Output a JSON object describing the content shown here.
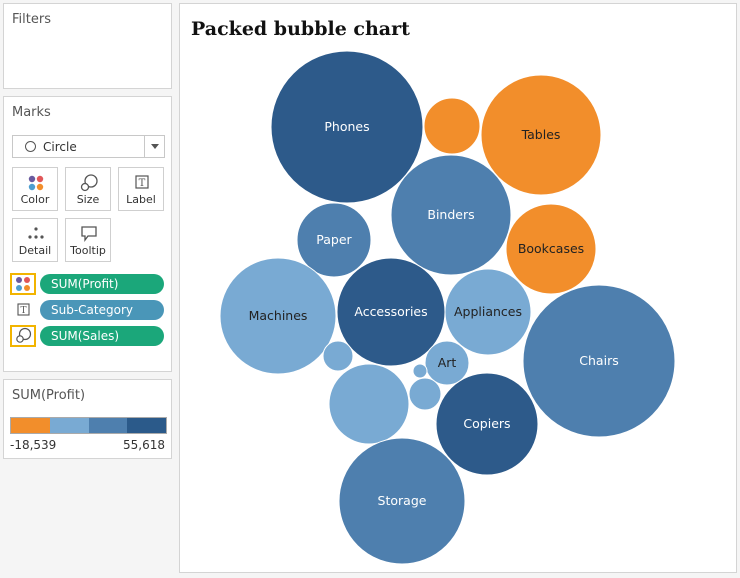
{
  "panels": {
    "filters_title": "Filters",
    "marks_title": "Marks",
    "mark_type": "Circle",
    "buttons": [
      {
        "label": "Color",
        "icon": "color-dots-icon"
      },
      {
        "label": "Size",
        "icon": "size-icon"
      },
      {
        "label": "Label",
        "icon": "label-icon"
      },
      {
        "label": "Detail",
        "icon": "detail-icon"
      },
      {
        "label": "Tooltip",
        "icon": "tooltip-icon"
      }
    ],
    "pills": [
      {
        "label": "SUM(Profit)",
        "icon": "color-dots-icon",
        "highlighted": true,
        "color": "#1ba77a"
      },
      {
        "label": "Sub-Category",
        "icon": "label-icon",
        "highlighted": false,
        "color": "#4a96b8"
      },
      {
        "label": "SUM(Sales)",
        "icon": "size-icon",
        "highlighted": true,
        "color": "#1ba77a"
      }
    ]
  },
  "legend": {
    "title": "SUM(Profit)",
    "min": "-18,539",
    "max": "55,618",
    "colors": [
      "#f28e2b",
      "#79aad3",
      "#4e7fae",
      "#2b5a8a"
    ]
  },
  "chart": {
    "title": "Packed bubble chart"
  },
  "chart_data": {
    "type": "bubble",
    "title": "Packed bubble chart",
    "size_measure": "SUM(Sales)",
    "color_measure": "SUM(Profit)",
    "label_field": "Sub-Category",
    "bubbles": [
      {
        "label": "Phones",
        "color": "#2d5a8a",
        "text_color": "#ffffff"
      },
      {
        "label": "",
        "color": "#f28e2b",
        "text_color": "#ffffff"
      },
      {
        "label": "Tables",
        "color": "#f28e2b",
        "text_color": "#222222"
      },
      {
        "label": "Binders",
        "color": "#4e7fae",
        "text_color": "#ffffff"
      },
      {
        "label": "Paper",
        "color": "#4e7fae",
        "text_color": "#ffffff"
      },
      {
        "label": "Bookcases",
        "color": "#f28e2b",
        "text_color": "#222222"
      },
      {
        "label": "Machines",
        "color": "#79aad3",
        "text_color": "#222222"
      },
      {
        "label": "Accessories",
        "color": "#2d5a8a",
        "text_color": "#ffffff"
      },
      {
        "label": "Appliances",
        "color": "#79aad3",
        "text_color": "#222222"
      },
      {
        "label": "Chairs",
        "color": "#4e7fae",
        "text_color": "#ffffff"
      },
      {
        "label": "Art",
        "color": "#79aad3",
        "text_color": "#222222"
      },
      {
        "label": "",
        "color": "#79aad3",
        "text_color": "#ffffff"
      },
      {
        "label": "",
        "color": "#79aad3",
        "text_color": "#ffffff"
      },
      {
        "label": "",
        "color": "#79aad3",
        "text_color": "#ffffff"
      },
      {
        "label": "",
        "color": "#79aad3",
        "text_color": "#ffffff"
      },
      {
        "label": "Copiers",
        "color": "#2d5a8a",
        "text_color": "#ffffff"
      },
      {
        "label": "Storage",
        "color": "#4e7fae",
        "text_color": "#ffffff"
      }
    ]
  }
}
